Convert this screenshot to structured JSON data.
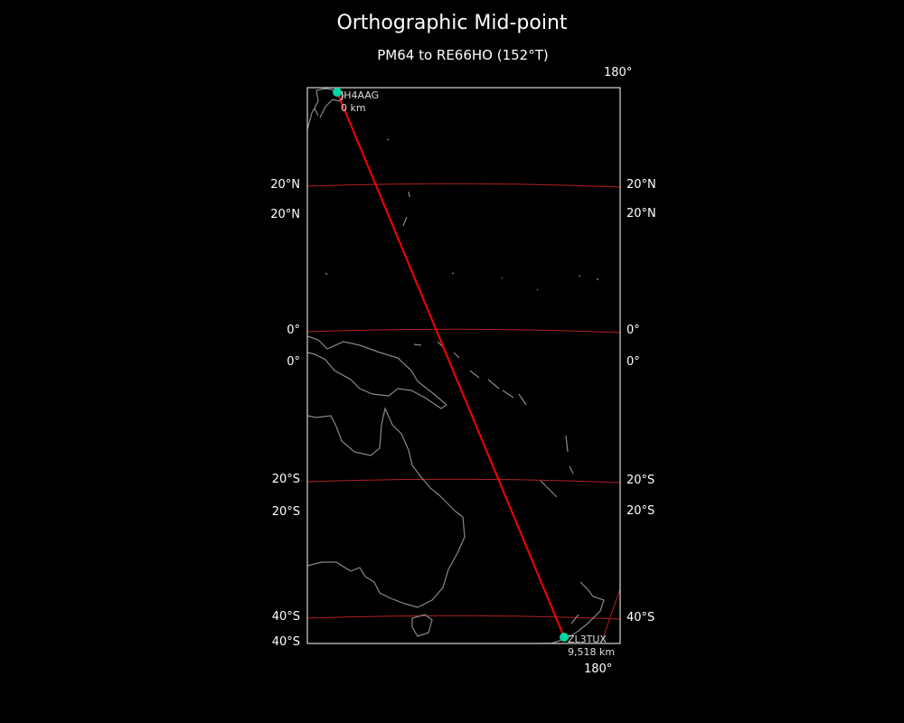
{
  "title": "Orthographic Mid-point",
  "subtitle": "PM64 to RE66HO (152°T)",
  "colors": {
    "background": "#000000",
    "path": "#ff0000",
    "gridline": "#b22222",
    "coast": "#888888",
    "station": "#00d4a0",
    "frame": "#ffffff"
  },
  "axis_labels": {
    "top": "180°",
    "bottom": "180°",
    "left": [
      "20°N",
      "20°N",
      "0°",
      "0°",
      "20°S",
      "20°S",
      "40°S",
      "40°S"
    ],
    "right": [
      "20°N",
      "20°N",
      "0°",
      "0°",
      "20°S",
      "20°S",
      "40°S"
    ]
  },
  "start": {
    "call": "JH4AAG",
    "distance": "0 km"
  },
  "end": {
    "call": "ZL3TUX",
    "distance": "9,518 km"
  }
}
